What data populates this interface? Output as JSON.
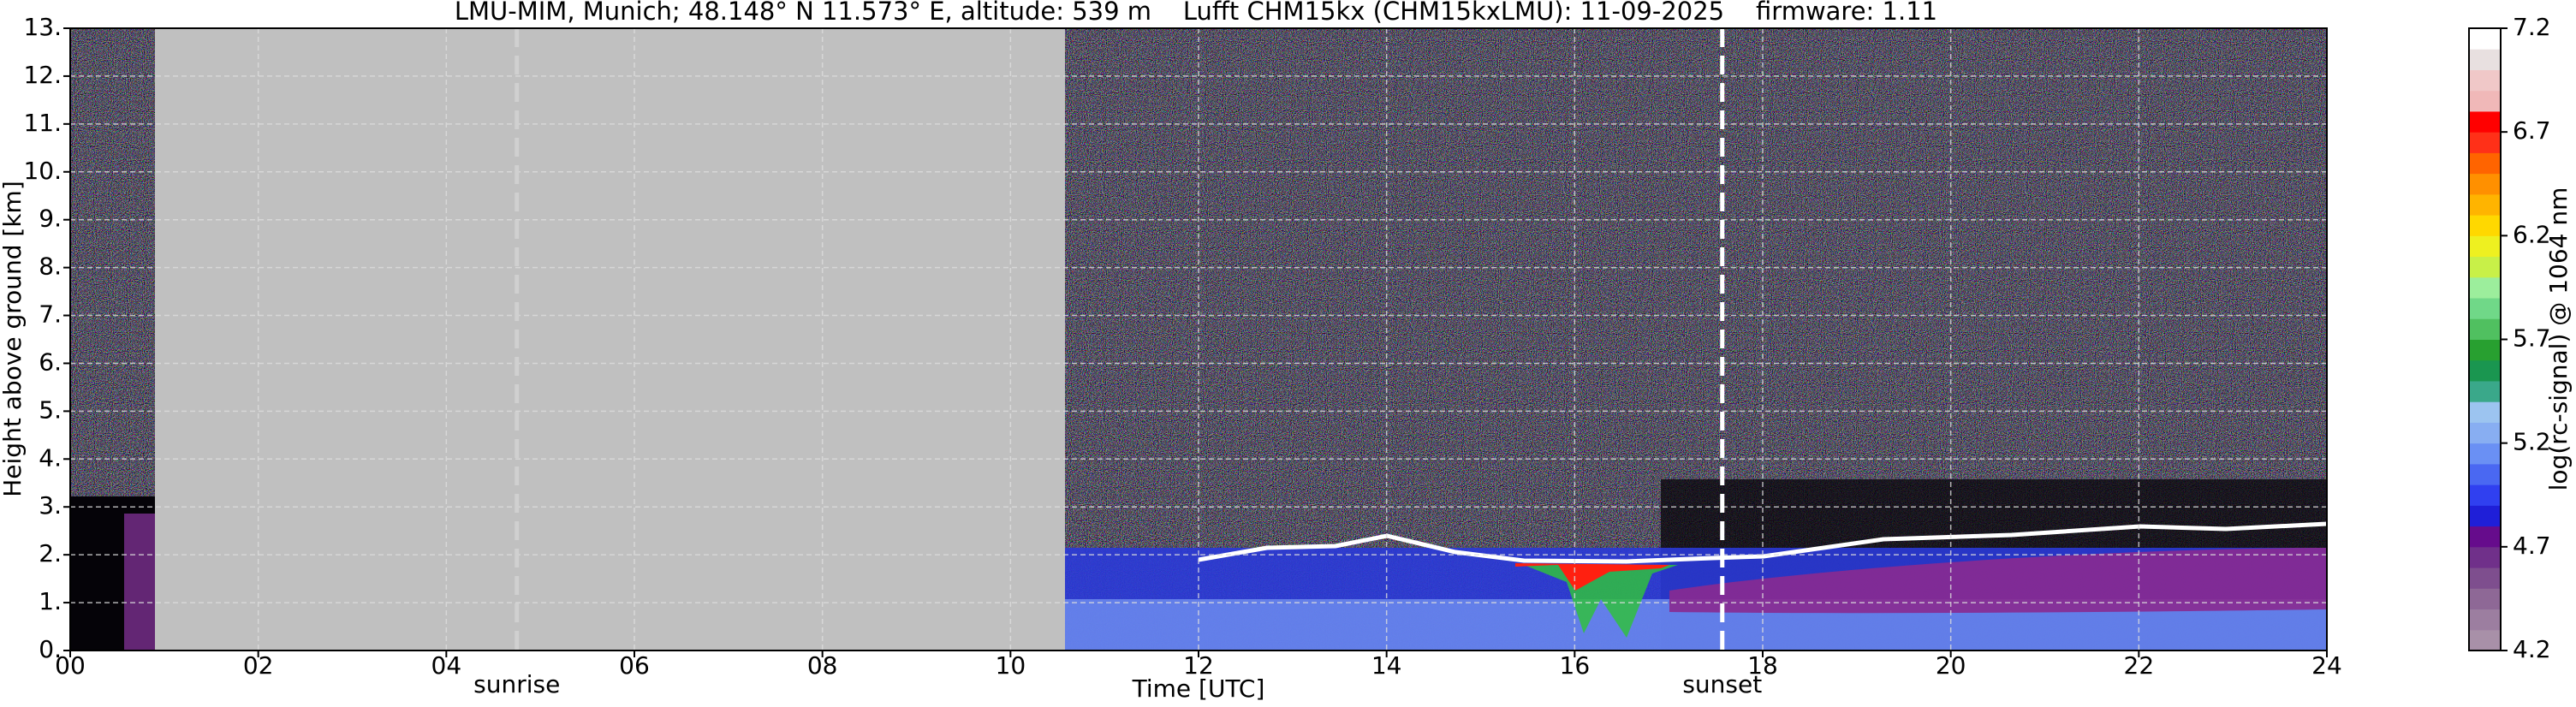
{
  "chart_data": {
    "type": "heatmap",
    "title": "LMU-MIM, Munich; 48.148° N 11.573° E, altitude: 539 m    Lufft CHM15kx (CHM15kxLMU): 11-09-2025    firmware: 1.11",
    "xlabel": "Time [UTC]",
    "ylabel": "Height above ground [km]",
    "xlim": [
      0,
      24
    ],
    "ylim": [
      0,
      13
    ],
    "xticks": [
      {
        "value": 0,
        "label": "00"
      },
      {
        "value": 2,
        "label": "02"
      },
      {
        "value": 4,
        "label": "04"
      },
      {
        "value": 6,
        "label": "06"
      },
      {
        "value": 8,
        "label": "08"
      },
      {
        "value": 10,
        "label": "10"
      },
      12,
      14,
      16,
      18,
      20,
      22,
      24
    ],
    "yticks": [
      {
        "value": 0,
        "label": "0."
      },
      {
        "value": 1,
        "label": "1."
      },
      {
        "value": 2,
        "label": "2."
      },
      {
        "value": 3,
        "label": "3."
      },
      {
        "value": 4,
        "label": "4."
      },
      {
        "value": 5,
        "label": "5."
      },
      {
        "value": 6,
        "label": "6."
      },
      {
        "value": 7,
        "label": "7."
      },
      {
        "value": 8,
        "label": "8."
      },
      {
        "value": 9,
        "label": "9."
      },
      {
        "value": 10,
        "label": "10."
      },
      {
        "value": 11,
        "label": "11."
      },
      {
        "value": 12,
        "label": "12."
      },
      {
        "value": 13,
        "label": "13."
      }
    ],
    "grid": true,
    "annotations": [
      {
        "x": 4.75,
        "label": "sunrise",
        "color": "#d0d0d0"
      },
      {
        "x": 17.57,
        "label": "sunset",
        "color": "#ffffff"
      }
    ],
    "colorbar": {
      "label": "log(rc-signal) @ 1064 nm",
      "clim": [
        4.2,
        7.2
      ],
      "ticks": [
        4.2,
        4.7,
        5.2,
        5.7,
        6.2,
        6.7,
        7.2
      ],
      "colors": [
        "#a890a8",
        "#9c7ea0",
        "#8e6896",
        "#7e4e8e",
        "#70308a",
        "#660c8c",
        "#1f1fd8",
        "#3040f0",
        "#4a68f2",
        "#6a90f4",
        "#88aef2",
        "#9cc4f0",
        "#3aa88a",
        "#1a9650",
        "#28a030",
        "#50c060",
        "#70d888",
        "#9cee9c",
        "#c8f048",
        "#eef020",
        "#ffd800",
        "#ffb400",
        "#ff9000",
        "#ff6400",
        "#ff3018",
        "#ff0000",
        "#f0b8b8",
        "#f0c8c8",
        "#e8e0e0",
        "#ffffff"
      ]
    }
  }
}
